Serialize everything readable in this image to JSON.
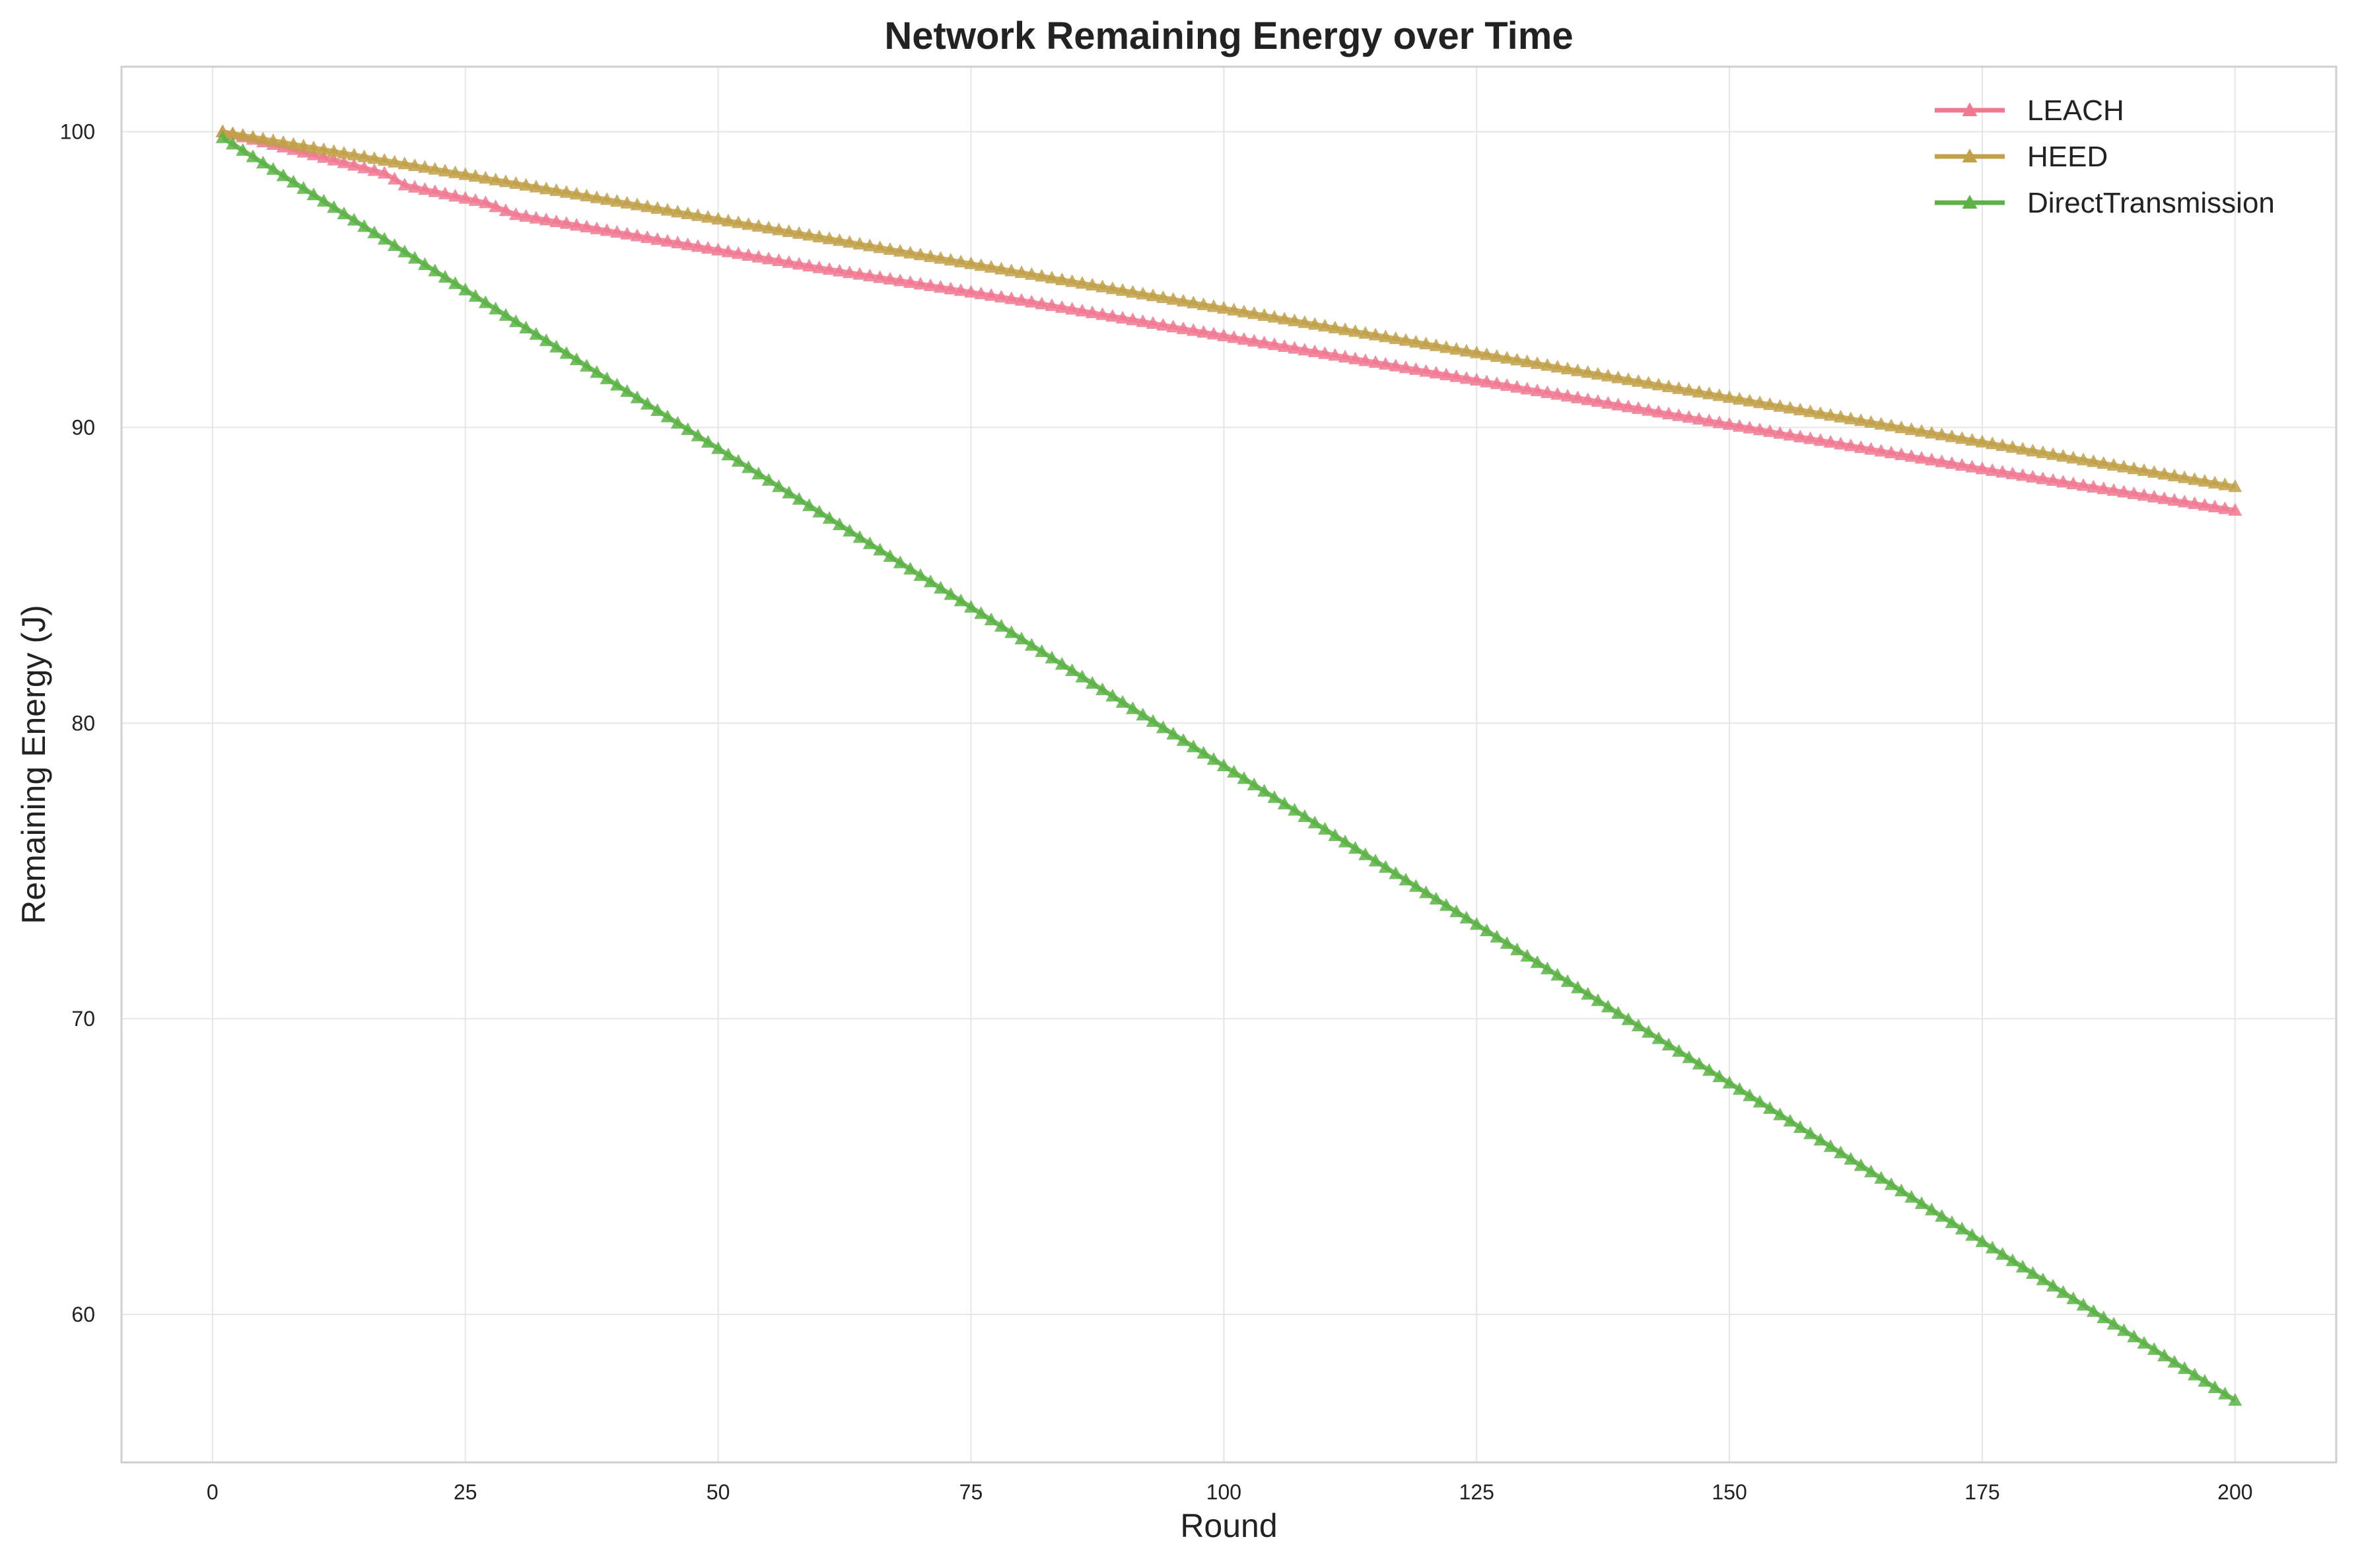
{
  "chart_data": {
    "type": "line",
    "title": "Network Remaining Energy over Time",
    "xlabel": "Round",
    "ylabel": "Remaining Energy (J)",
    "xlim": [
      -9,
      210
    ],
    "ylim": [
      55,
      102.2
    ],
    "xticks": [
      0,
      25,
      50,
      75,
      100,
      125,
      150,
      175,
      200
    ],
    "yticks": [
      60,
      70,
      80,
      90,
      100
    ],
    "grid": true,
    "legend": "top-right",
    "marker": "triangle",
    "x_range": [
      1,
      200
    ],
    "series": [
      {
        "name": "LEACH",
        "color": "#f07891",
        "points": [
          [
            1,
            100
          ],
          [
            8,
            99.4
          ],
          [
            17,
            98.6
          ],
          [
            19,
            98.2
          ],
          [
            27,
            97.6
          ],
          [
            30,
            97.2
          ],
          [
            40,
            96.6
          ],
          [
            60,
            95.4
          ],
          [
            80,
            94.3
          ],
          [
            100,
            93.1
          ],
          [
            125,
            91.6
          ],
          [
            150,
            90.1
          ],
          [
            175,
            88.6
          ],
          [
            200,
            87.2
          ]
        ]
      },
      {
        "name": "HEED",
        "color": "#c1a048",
        "points": [
          [
            1,
            100
          ],
          [
            200,
            88.0
          ]
        ]
      },
      {
        "name": "DirectTransmission",
        "color": "#5bb344",
        "points": [
          [
            1,
            99.8
          ],
          [
            200,
            57.1
          ]
        ]
      }
    ]
  }
}
